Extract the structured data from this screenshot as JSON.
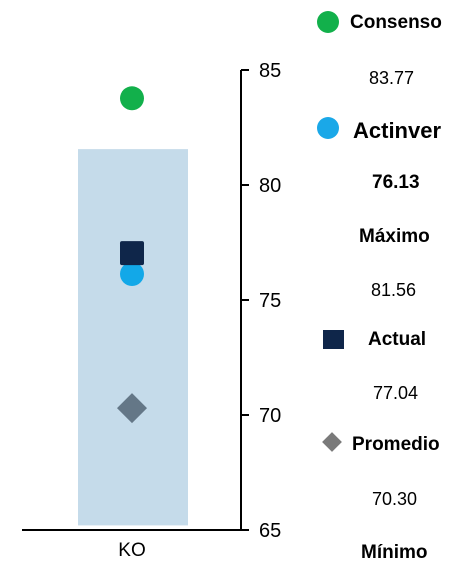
{
  "chart_data": {
    "type": "scatter",
    "categories": [
      "KO"
    ],
    "ylim": [
      65,
      85
    ],
    "yticks": [
      85,
      80,
      75,
      70,
      65
    ],
    "range": {
      "min": 65.2,
      "max": 81.56,
      "color": "#c5dbea"
    },
    "points": [
      {
        "name": "Consenso",
        "value": 83.77,
        "marker": "circle",
        "color": "#12b04b"
      },
      {
        "name": "Actinver",
        "value": 76.13,
        "marker": "circle",
        "color": "#12a8e8"
      },
      {
        "name": "Actual",
        "value": 77.04,
        "marker": "square",
        "color": "#0f264a"
      },
      {
        "name": "Promedio",
        "value": 70.3,
        "marker": "diamond",
        "color": "#647787"
      }
    ]
  },
  "legend": {
    "consenso_label": "Consenso",
    "consenso_value": "83.77",
    "actinver_label": "Actinver",
    "actinver_value": "76.13",
    "maximo_label": "Máximo",
    "maximo_value": "81.56",
    "actual_label": "Actual",
    "actual_value": "77.04",
    "promedio_label": "Promedio",
    "promedio_value": "70.30",
    "minimo_label": "Mínimo"
  },
  "colors": {
    "consenso": "#12b04b",
    "actinver": "#1aa8e8",
    "actual": "#0f264a",
    "promedio": "#7a7a7a"
  }
}
